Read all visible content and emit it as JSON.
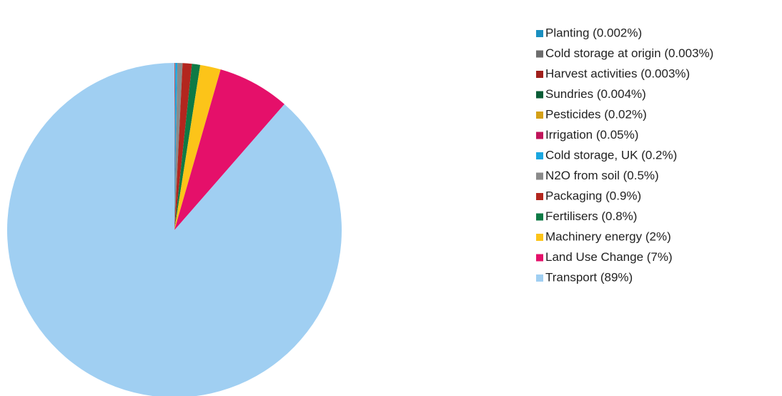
{
  "chart_data": {
    "type": "pie",
    "categories": [
      "Planting (0.002%)",
      "Cold storage at origin (0.003%)",
      "Harvest activities (0.003%)",
      "Sundries (0.004%)",
      "Pesticides (0.02%)",
      "Irrigation (0.05%)",
      "Cold storage, UK (0.2%)",
      "N2O from soil (0.5%)",
      "Packaging (0.9%)",
      "Fertilisers (0.8%)",
      "Machinery energy (2%)",
      "Land Use Change (7%)",
      "Transport (89%)"
    ],
    "values": [
      0.002,
      0.003,
      0.003,
      0.004,
      0.02,
      0.05,
      0.2,
      0.5,
      0.9,
      0.8,
      2,
      7,
      89
    ],
    "colors": [
      "#1a8fc0",
      "#6d6d6d",
      "#a0201c",
      "#0a5c36",
      "#d4a017",
      "#c0145a",
      "#1aa7e0",
      "#8a8a8a",
      "#b3261e",
      "#0e7a45",
      "#fcc419",
      "#e5106a",
      "#a0cff2"
    ],
    "legend": "right"
  }
}
